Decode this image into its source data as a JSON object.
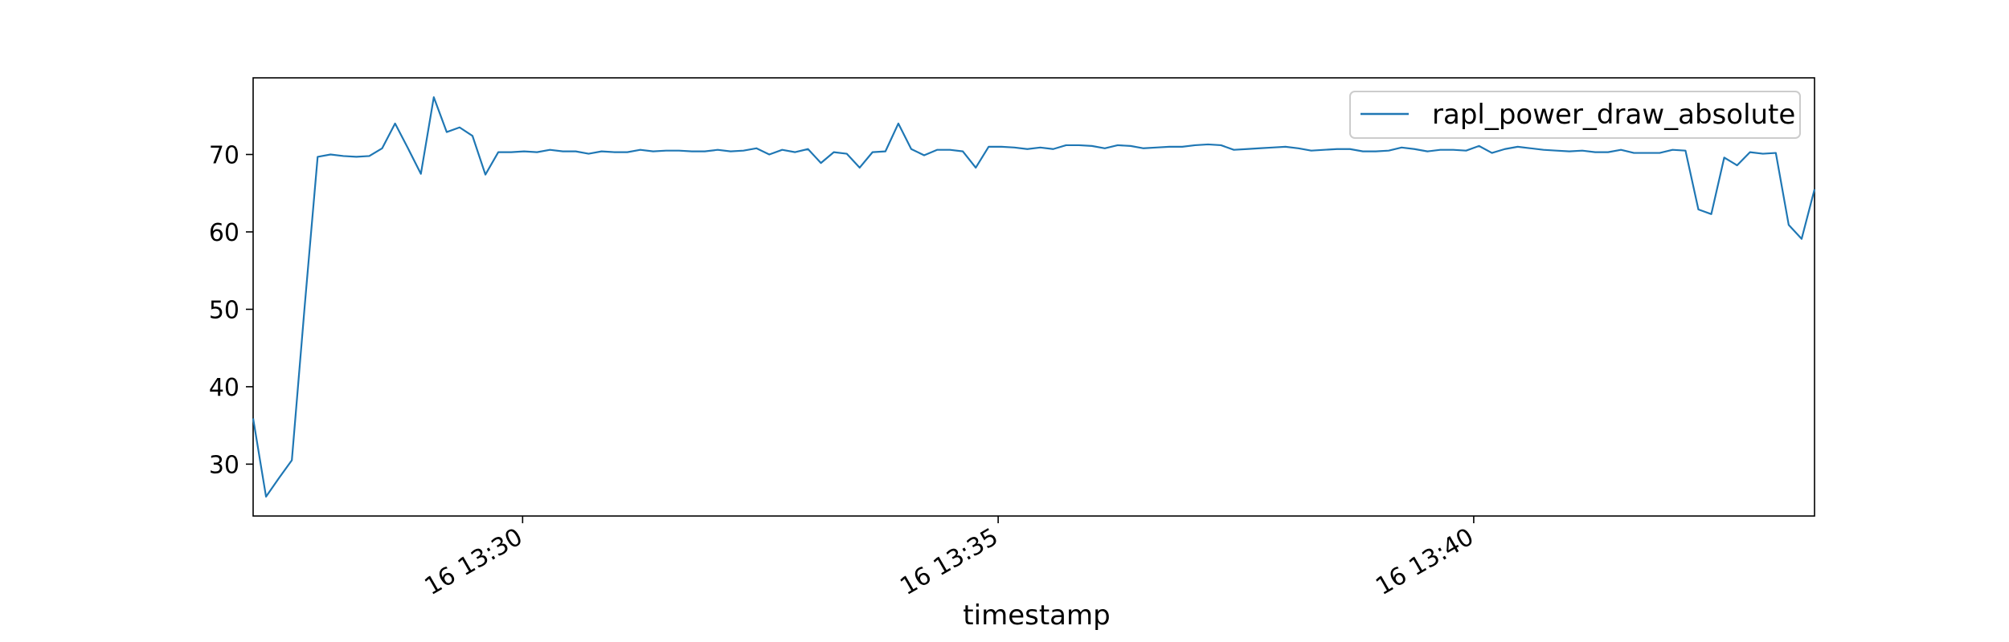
{
  "chart_data": {
    "type": "line",
    "title": "",
    "xlabel": "timestamp",
    "ylabel": "",
    "legend_position": "top-right",
    "grid": false,
    "series_color": "#1f77b4",
    "x_tick_labels": [
      "16 13:30",
      "16 13:35",
      "16 13:40"
    ],
    "y_ticks": [
      30,
      40,
      50,
      60,
      70
    ],
    "ylim": [
      23.3,
      79.9
    ],
    "x_start": "16 13:27:10",
    "x_end": "16 13:43:35",
    "x_step_seconds": 8.3,
    "series": [
      {
        "name": "rapl_power_draw_absolute",
        "values": [
          35.9,
          25.8,
          28.2,
          30.5,
          50.5,
          69.7,
          70.0,
          69.8,
          69.7,
          69.8,
          70.8,
          74.0,
          70.8,
          67.5,
          77.4,
          72.9,
          73.5,
          72.4,
          67.4,
          70.3,
          70.3,
          70.4,
          70.3,
          70.6,
          70.4,
          70.4,
          70.1,
          70.4,
          70.3,
          70.3,
          70.6,
          70.4,
          70.5,
          70.5,
          70.4,
          70.4,
          70.6,
          70.4,
          70.5,
          70.8,
          70.0,
          70.6,
          70.3,
          70.7,
          68.9,
          70.3,
          70.1,
          68.3,
          70.3,
          70.4,
          74.0,
          70.7,
          69.9,
          70.6,
          70.6,
          70.4,
          68.3,
          71.0,
          71.0,
          70.9,
          70.7,
          70.9,
          70.7,
          71.2,
          71.2,
          71.1,
          70.8,
          71.2,
          71.1,
          70.8,
          70.9,
          71.0,
          71.0,
          71.2,
          71.3,
          71.2,
          70.6,
          70.7,
          70.8,
          70.9,
          71.0,
          70.8,
          70.5,
          70.6,
          70.7,
          70.7,
          70.4,
          70.4,
          70.5,
          70.9,
          70.7,
          70.4,
          70.6,
          70.6,
          70.5,
          71.1,
          70.2,
          70.7,
          71.0,
          70.8,
          70.6,
          70.5,
          70.4,
          70.5,
          70.3,
          70.3,
          70.6,
          70.2,
          70.2,
          70.2,
          70.6,
          70.5,
          62.9,
          62.3,
          69.6,
          68.6,
          70.3,
          70.1,
          70.2,
          60.9,
          59.1,
          65.5
        ]
      }
    ]
  }
}
